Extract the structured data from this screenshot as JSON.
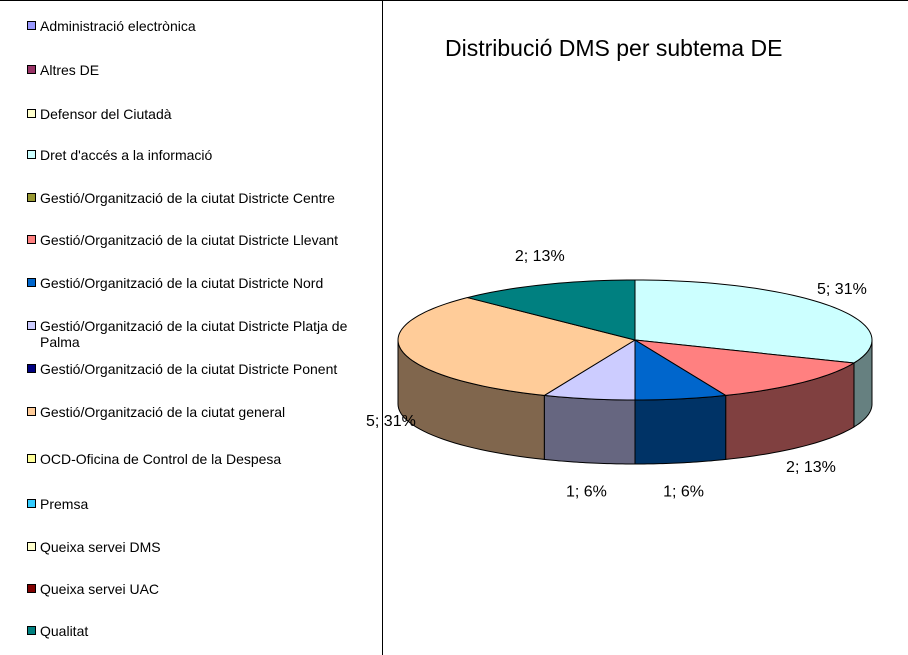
{
  "chart_data": {
    "type": "pie",
    "title": "Distribució DMS per subtema DE",
    "categories": [
      "Administració electrònica",
      "Altres DE",
      "Defensor del Ciutadà",
      "Dret d'accés a la informació",
      "Gestió/Organització de la ciutat Districte Centre",
      "Gestió/Organització de la ciutat Districte Llevant",
      "Gestió/Organització de la ciutat Districte Nord",
      "Gestió/Organització de la ciutat Districte Platja de Palma",
      "Gestió/Organització de la ciutat Districte Ponent",
      "Gestió/Organització de la ciutat general",
      "OCD-Oficina de Control de la Despesa",
      "Premsa",
      "Queixa servei DMS",
      "Queixa servei UAC",
      "Qualitat"
    ],
    "values": [
      0,
      0,
      0,
      5,
      0,
      2,
      1,
      1,
      0,
      5,
      0,
      0,
      0,
      0,
      2
    ],
    "value_labels": [
      null,
      null,
      null,
      "5; 31%",
      null,
      "2; 13%",
      "1; 6%",
      "1; 6%",
      null,
      "5; 31%",
      null,
      null,
      null,
      null,
      "2; 13%"
    ],
    "colors": [
      "#9999ff",
      "#993366",
      "#ffffcc",
      "#ccffff",
      "#999933",
      "#ff8080",
      "#0066cc",
      "#ccccff",
      "#000080",
      "#ffcc99",
      "#ffff99",
      "#33ccff",
      "#ffffcc",
      "#800000",
      "#008080"
    ],
    "legend": "left"
  }
}
